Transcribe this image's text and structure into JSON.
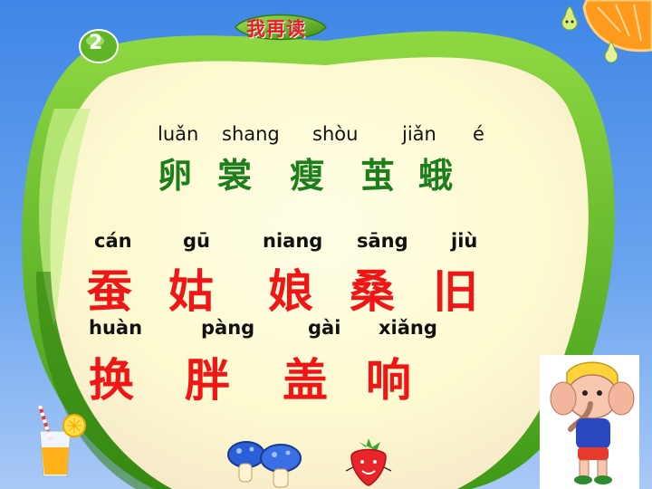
{
  "header": {
    "title": "我再读",
    "lesson_number": "2"
  },
  "row1": {
    "pinyin": [
      "luǎn",
      "shang",
      "shòu",
      "jiǎn",
      "é"
    ],
    "hanzi": [
      "卵",
      "裳",
      "瘦",
      "茧",
      "蛾"
    ]
  },
  "row2": {
    "pinyin": [
      "cán",
      "gū",
      "niang",
      "sāng",
      "jiù"
    ],
    "hanzi": [
      "蚕",
      "姑",
      "娘",
      "桑",
      "旧"
    ]
  },
  "row3": {
    "pinyin": [
      "huàn",
      "pàng",
      "gài",
      "xiǎng"
    ],
    "hanzi": [
      "换",
      "胖",
      "盖",
      "响"
    ]
  },
  "colors": {
    "background": "#3f86e6",
    "apple_fill": "#fdfad0",
    "apple_rim": "#5fb525",
    "green_characters": "#1c7f1c",
    "red_characters": "#f11616",
    "title_red": "#e4202a"
  },
  "decorations": [
    "orange-slice",
    "pear",
    "leaf",
    "juice-glass",
    "mushrooms",
    "strawberry",
    "elephant-cartoon"
  ]
}
